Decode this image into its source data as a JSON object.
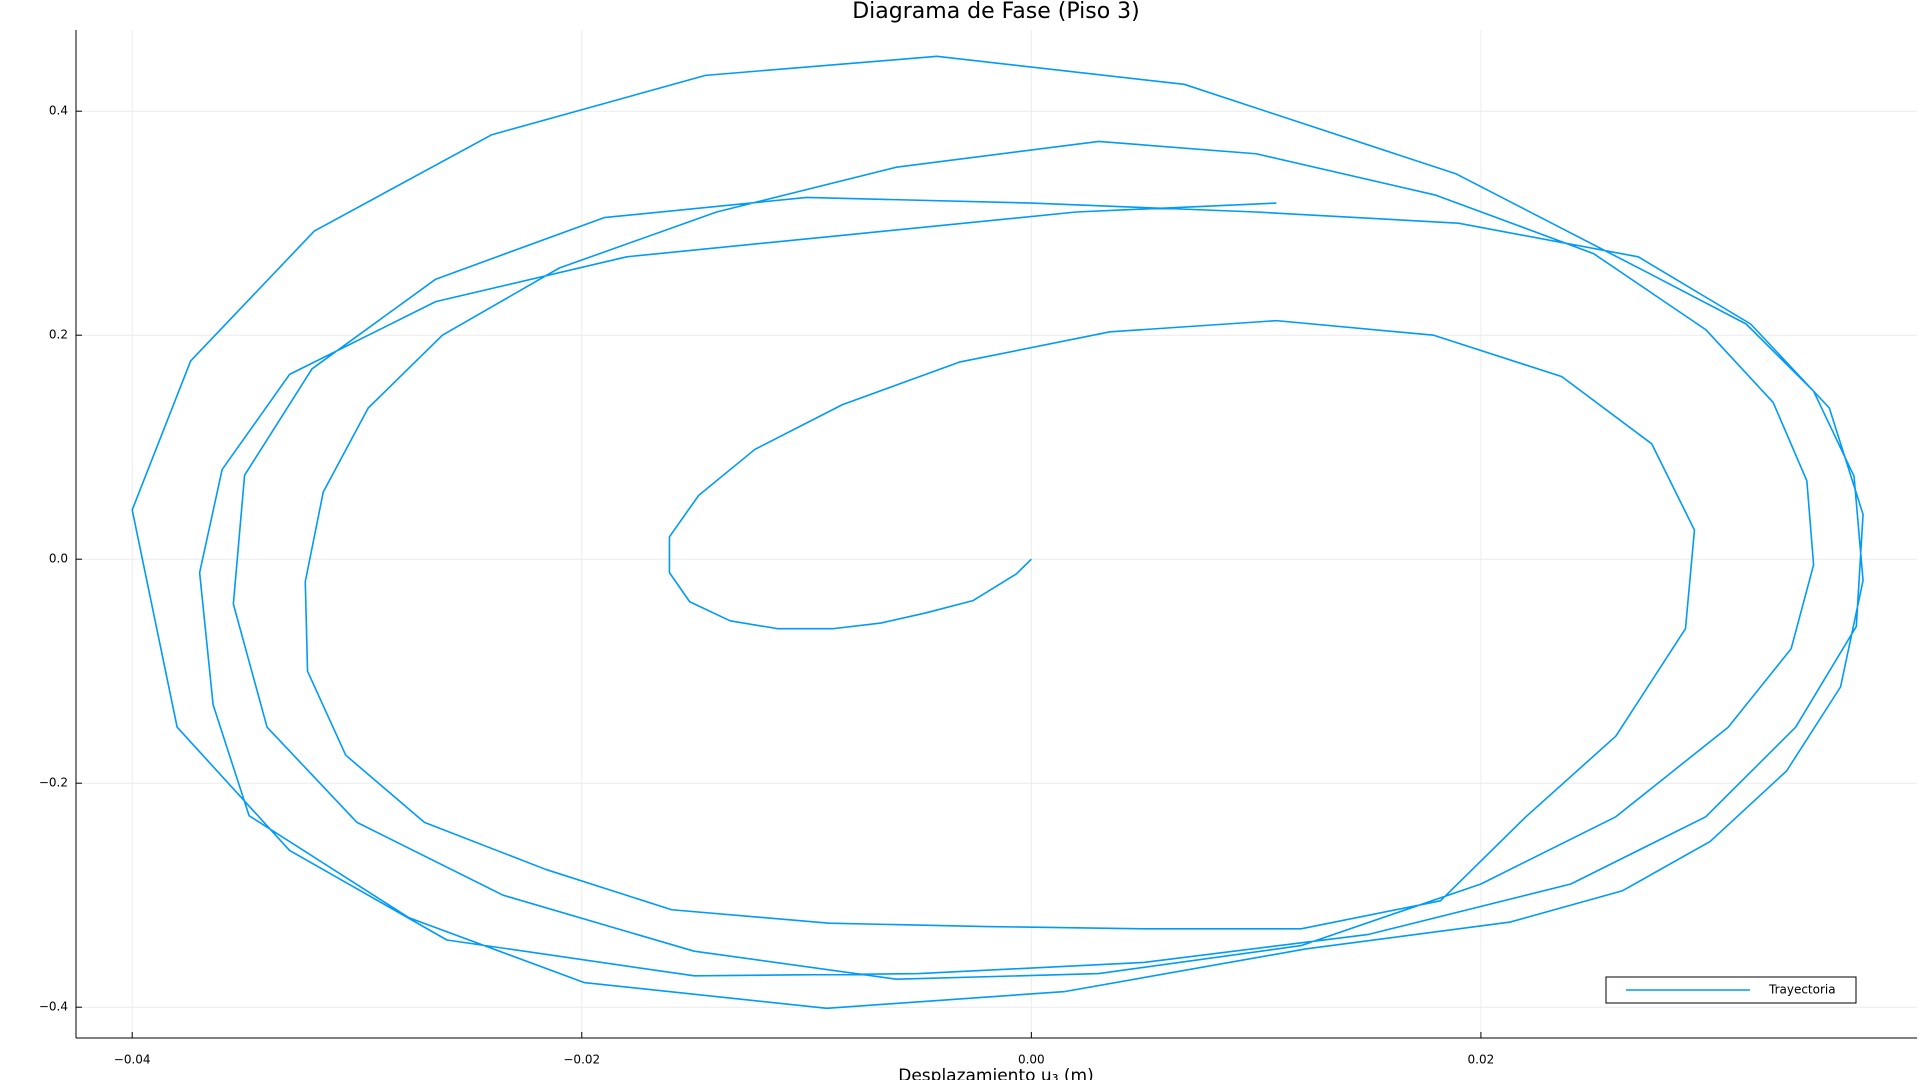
{
  "chart_data": {
    "type": "line",
    "title": "Diagrama de Fase (Piso 3)",
    "x_label": "Desplazamiento u₃ (m)",
    "xlim": [
      -0.0425,
      0.0394
    ],
    "ylim": [
      -0.4275,
      0.4725
    ],
    "xticks": [
      {
        "value": -0.04,
        "label": "−0.04"
      },
      {
        "value": -0.02,
        "label": "−0.02"
      },
      {
        "value": 0,
        "label": "0.00"
      },
      {
        "value": 0.02,
        "label": "0.02"
      }
    ],
    "yticks": [
      {
        "value": -0.4,
        "label": "−0.4"
      },
      {
        "value": -0.2,
        "label": "−0.2"
      },
      {
        "value": 0,
        "label": "0.0"
      },
      0.2,
      0.4
    ],
    "grid": true,
    "legend": "bottom-right",
    "series": [
      {
        "name": "Trayectoria",
        "color": "#009af9",
        "x": [
          0,
          -0.00066,
          -0.0026,
          -0.0047,
          -0.0067,
          -0.0088,
          -0.0113,
          -0.0134,
          -0.0152,
          -0.0161,
          -0.0161,
          -0.0148,
          -0.0123,
          -0.0084,
          -0.0032,
          0.0035,
          0.0109,
          0.0179,
          0.0236,
          0.0276,
          0.0295,
          0.0291,
          0.026,
          0.022,
          0.0182,
          0.012,
          0.005,
          -0.002,
          -0.009,
          -0.016,
          -0.0216,
          -0.027,
          -0.0305,
          -0.0322,
          -0.0323,
          -0.0315,
          -0.0295,
          -0.0262,
          -0.021,
          -0.014,
          -0.006,
          0.003,
          0.01,
          0.018,
          0.025,
          0.03,
          0.033,
          0.0345,
          0.0348,
          0.0338,
          0.031,
          0.026,
          0.02,
          0.012,
          0.003,
          -0.006,
          -0.015,
          -0.0235,
          -0.03,
          -0.034,
          -0.0355,
          -0.035,
          -0.032,
          -0.0265,
          -0.019,
          -0.01,
          0,
          0.01,
          0.019,
          0.027,
          0.032,
          0.0355,
          0.037,
          0.0367,
          0.034,
          0.03,
          0.024,
          0.015,
          0.005,
          -0.005,
          -0.015,
          -0.026,
          -0.033,
          -0.038,
          -0.04,
          -0.0374,
          -0.0319,
          -0.024,
          -0.0145,
          -0.0042,
          0.0068,
          0.0189,
          0.0275,
          0.0318,
          0.0348,
          0.0366,
          0.037,
          0.036,
          0.0336,
          0.0302,
          0.0263,
          0.0213,
          0.0122,
          0.0015,
          -0.0091,
          -0.0199,
          -0.0277,
          -0.0348,
          -0.0364,
          -0.037,
          -0.036,
          -0.033,
          -0.0265,
          -0.018,
          -0.008,
          0.002,
          0.0109
        ],
        "values": [
          0,
          -0.013,
          -0.037,
          -0.048,
          -0.057,
          -0.062,
          -0.062,
          -0.055,
          -0.038,
          -0.012,
          0.02,
          0.057,
          0.098,
          0.138,
          0.176,
          0.203,
          0.213,
          0.2,
          0.163,
          0.103,
          0.026,
          -0.062,
          -0.158,
          -0.23,
          -0.305,
          -0.33,
          -0.33,
          -0.328,
          -0.325,
          -0.313,
          -0.277,
          -0.235,
          -0.175,
          -0.1,
          -0.02,
          0.06,
          0.135,
          0.2,
          0.26,
          0.31,
          0.35,
          0.373,
          0.362,
          0.325,
          0.273,
          0.205,
          0.14,
          0.07,
          -0.005,
          -0.08,
          -0.15,
          -0.23,
          -0.29,
          -0.345,
          -0.37,
          -0.375,
          -0.35,
          -0.3,
          -0.235,
          -0.15,
          -0.04,
          0.075,
          0.17,
          0.25,
          0.305,
          0.323,
          0.318,
          0.31,
          0.3,
          0.27,
          0.21,
          0.135,
          0.04,
          -0.06,
          -0.15,
          -0.23,
          -0.29,
          -0.335,
          -0.36,
          -0.37,
          -0.372,
          -0.34,
          -0.26,
          -0.15,
          0.044,
          0.177,
          0.293,
          0.379,
          0.432,
          0.449,
          0.424,
          0.344,
          0.255,
          0.21,
          0.15,
          0.074,
          -0.019,
          -0.114,
          -0.189,
          -0.252,
          -0.296,
          -0.324,
          -0.348,
          -0.386,
          -0.401,
          -0.378,
          -0.32,
          -0.229,
          -0.13,
          -0.012,
          0.08,
          0.165,
          0.23,
          0.27,
          0.29,
          0.31,
          0.318
        ]
      }
    ]
  }
}
